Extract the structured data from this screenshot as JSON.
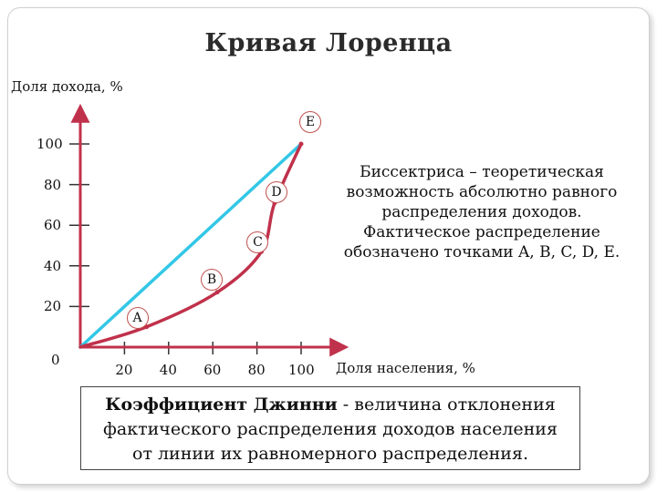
{
  "title": "Кривая Лоренца",
  "chart_data": {
    "type": "line",
    "title": "Кривая Лоренца",
    "xlabel": "Доля населения, %",
    "ylabel": "Доля дохода, %",
    "x_ticks": [
      "0",
      "20",
      "40",
      "60",
      "80",
      "100"
    ],
    "y_ticks": [
      "0",
      "20",
      "40",
      "60",
      "80",
      "100"
    ],
    "xlim": [
      0,
      100
    ],
    "ylim": [
      0,
      100
    ],
    "grid": false,
    "series": [
      {
        "name": "",
        "color": "#33c7e6",
        "points": [
          {
            "x": 0,
            "y": 0
          },
          {
            "x": 100,
            "y": 100
          }
        ]
      },
      {
        "name": "",
        "color": "#c0314b",
        "points": [
          {
            "x": 0,
            "y": 0,
            "label": ""
          },
          {
            "x": 30,
            "y": 10,
            "label": "A"
          },
          {
            "x": 62,
            "y": 27,
            "label": "B"
          },
          {
            "x": 82,
            "y": 47,
            "label": "C"
          },
          {
            "x": 88,
            "y": 71,
            "label": "D"
          },
          {
            "x": 100,
            "y": 100,
            "label": "E"
          }
        ]
      }
    ]
  },
  "note": {
    "lines": [
      "Биссектриса – теоретическая",
      "возможность абсолютно равного",
      "распределения доходов.",
      "Фактическое распределение",
      "обозначено точками A, B, C, D, E."
    ]
  },
  "gini": {
    "term": "Коэффициент Джинни",
    "definition_1": " - величина отклонения",
    "definition_2": "фактического распределения доходов населения",
    "definition_3": "от линии их равномерного распределения."
  },
  "colors": {
    "axis": "#c0314b",
    "equality_line": "#33c7e6",
    "curve": "#c0314b",
    "tick": "#333333"
  }
}
